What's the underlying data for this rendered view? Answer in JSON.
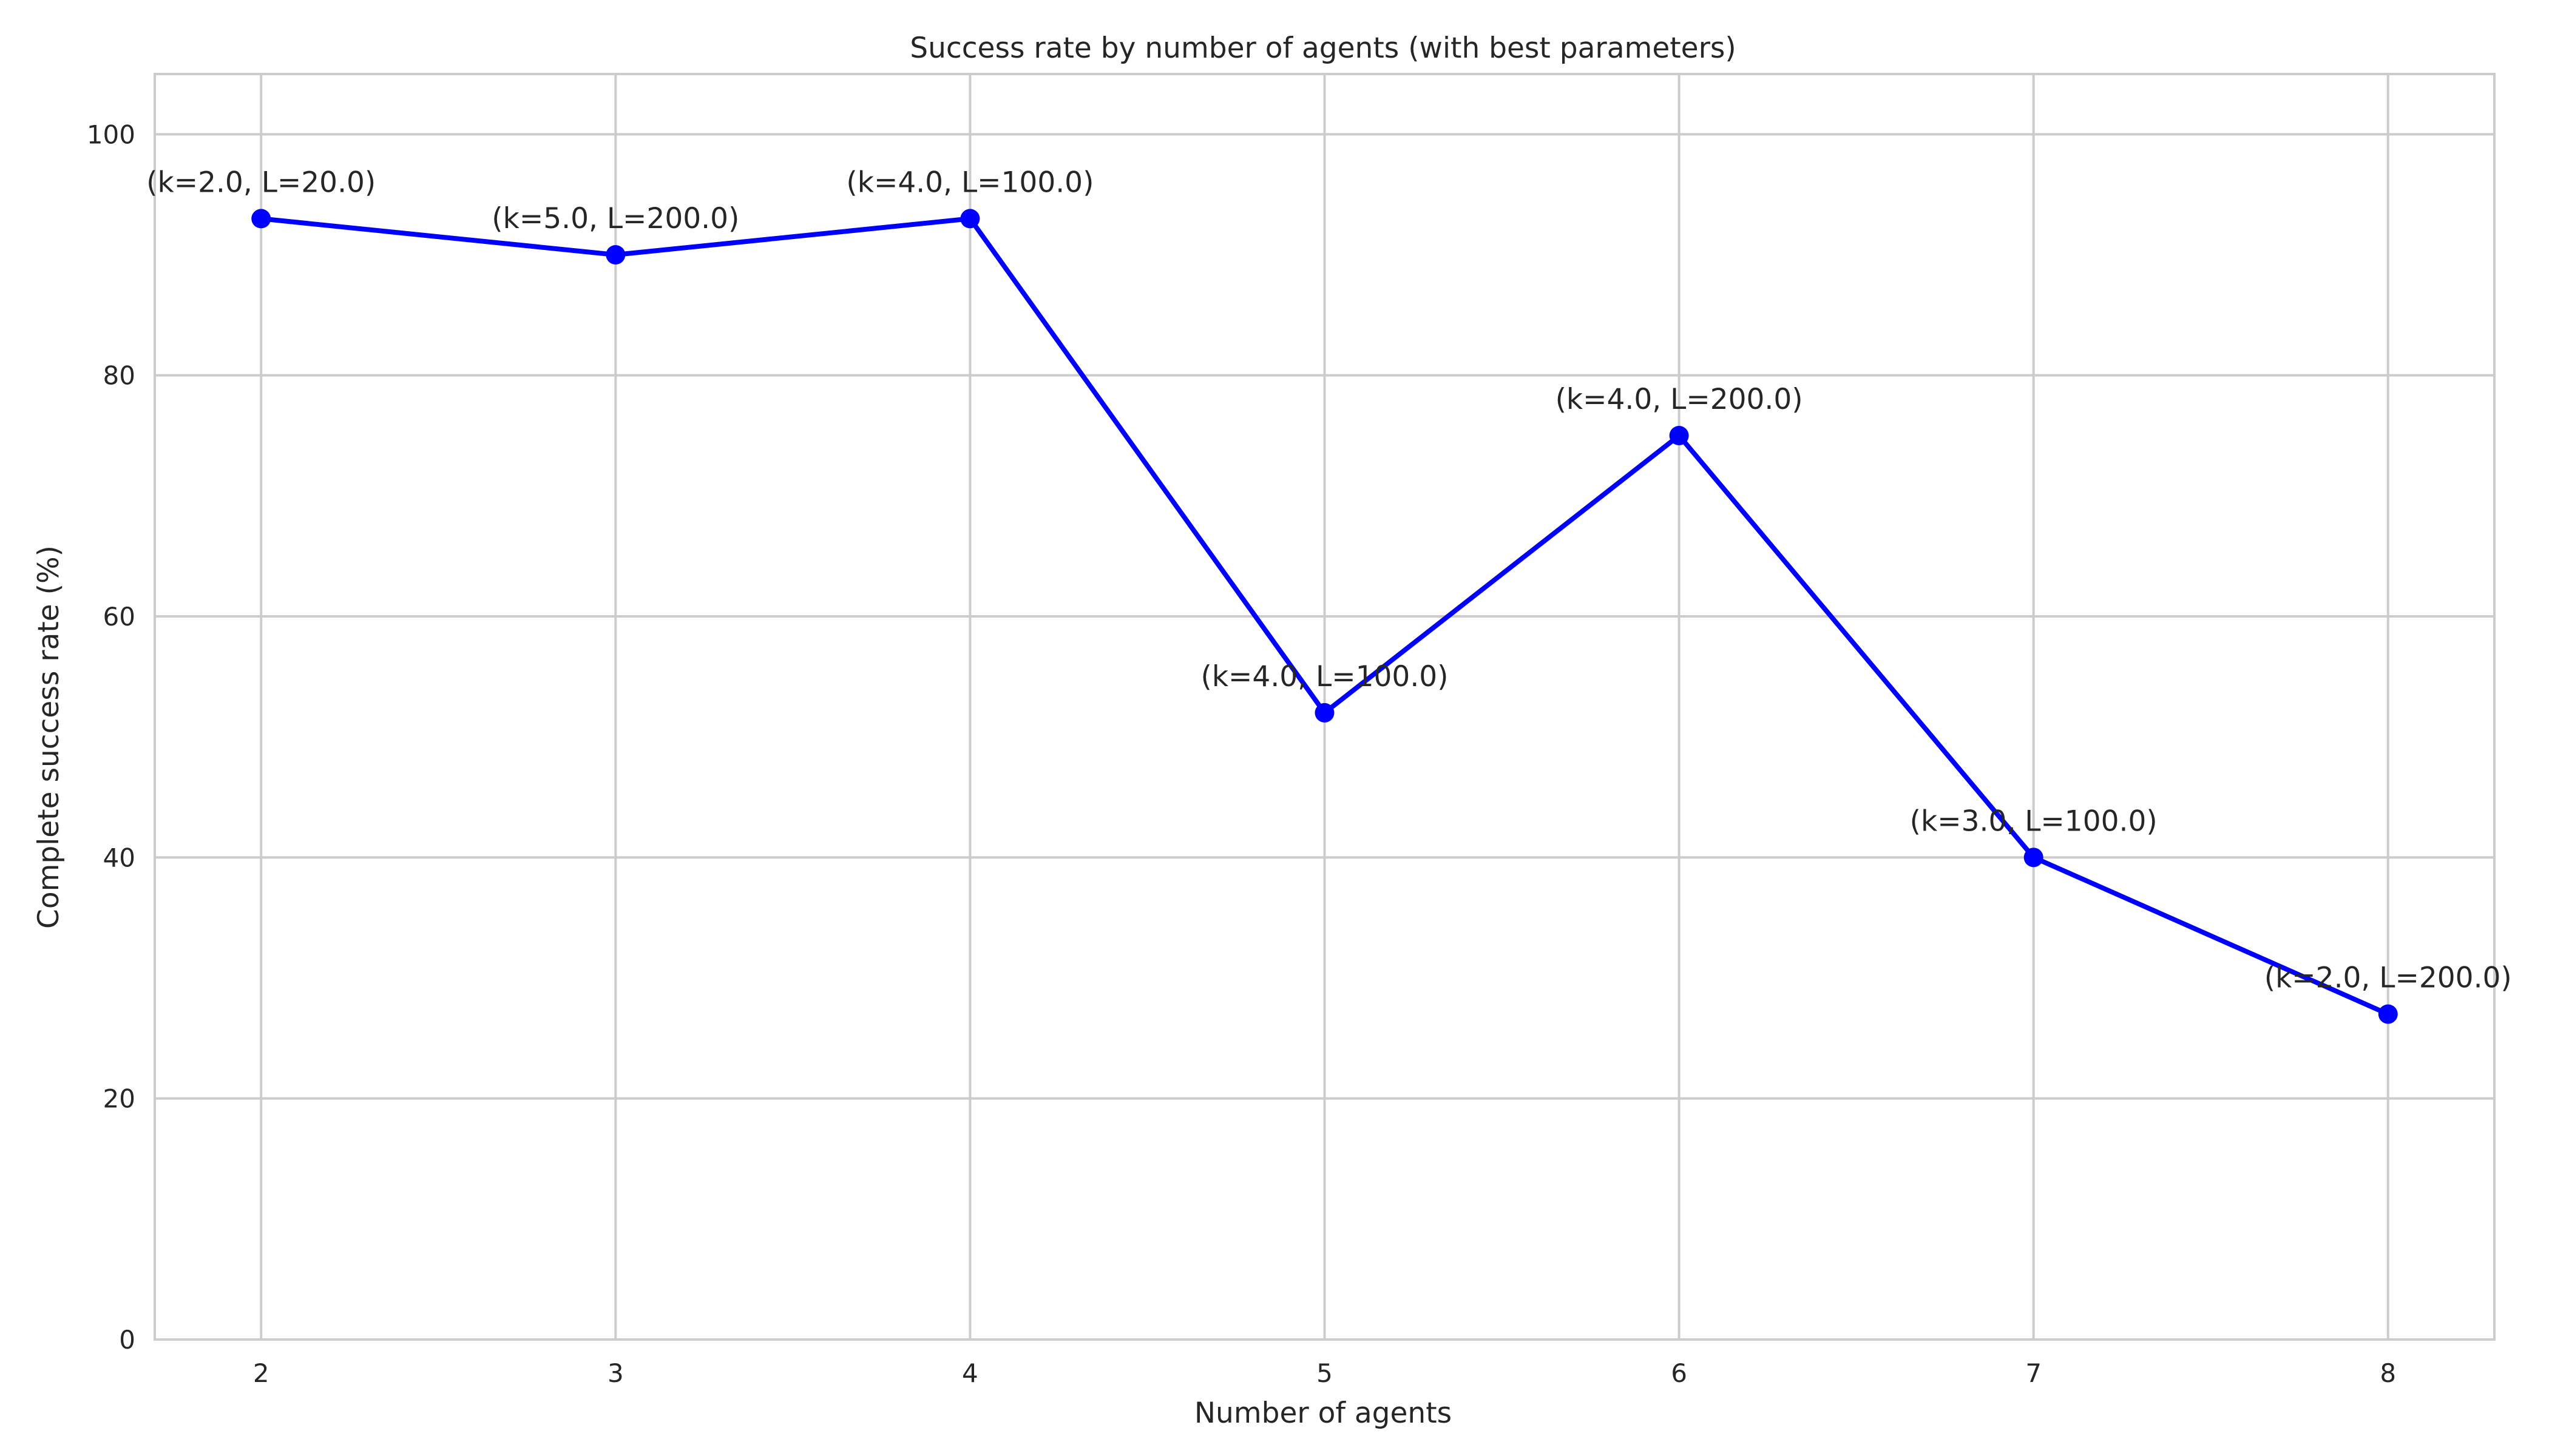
{
  "chart_data": {
    "type": "line",
    "title": "Success rate by number of agents (with best parameters)",
    "xlabel": "Number of agents",
    "ylabel": "Complete success rate (%)",
    "x": [
      2,
      3,
      4,
      5,
      6,
      7,
      8
    ],
    "xlim": [
      1.7,
      8.3
    ],
    "ylim": [
      0,
      105
    ],
    "x_ticks": [
      "2",
      "3",
      "4",
      "5",
      "6",
      "7",
      "8"
    ],
    "y_ticks": [
      "0",
      "20",
      "40",
      "60",
      "80",
      "100"
    ],
    "grid": true,
    "series": [
      {
        "color": "#0000ff",
        "marker": "circle",
        "values": [
          93,
          90,
          93,
          52,
          75,
          40,
          27
        ],
        "annotations": [
          "(k=2.0, L=20.0)",
          "(k=5.0, L=200.0)",
          "(k=4.0, L=100.0)",
          "(k=4.0, L=100.0)",
          "(k=4.0, L=200.0)",
          "(k=3.0, L=100.0)",
          "(k=2.0, L=200.0)"
        ]
      }
    ]
  }
}
